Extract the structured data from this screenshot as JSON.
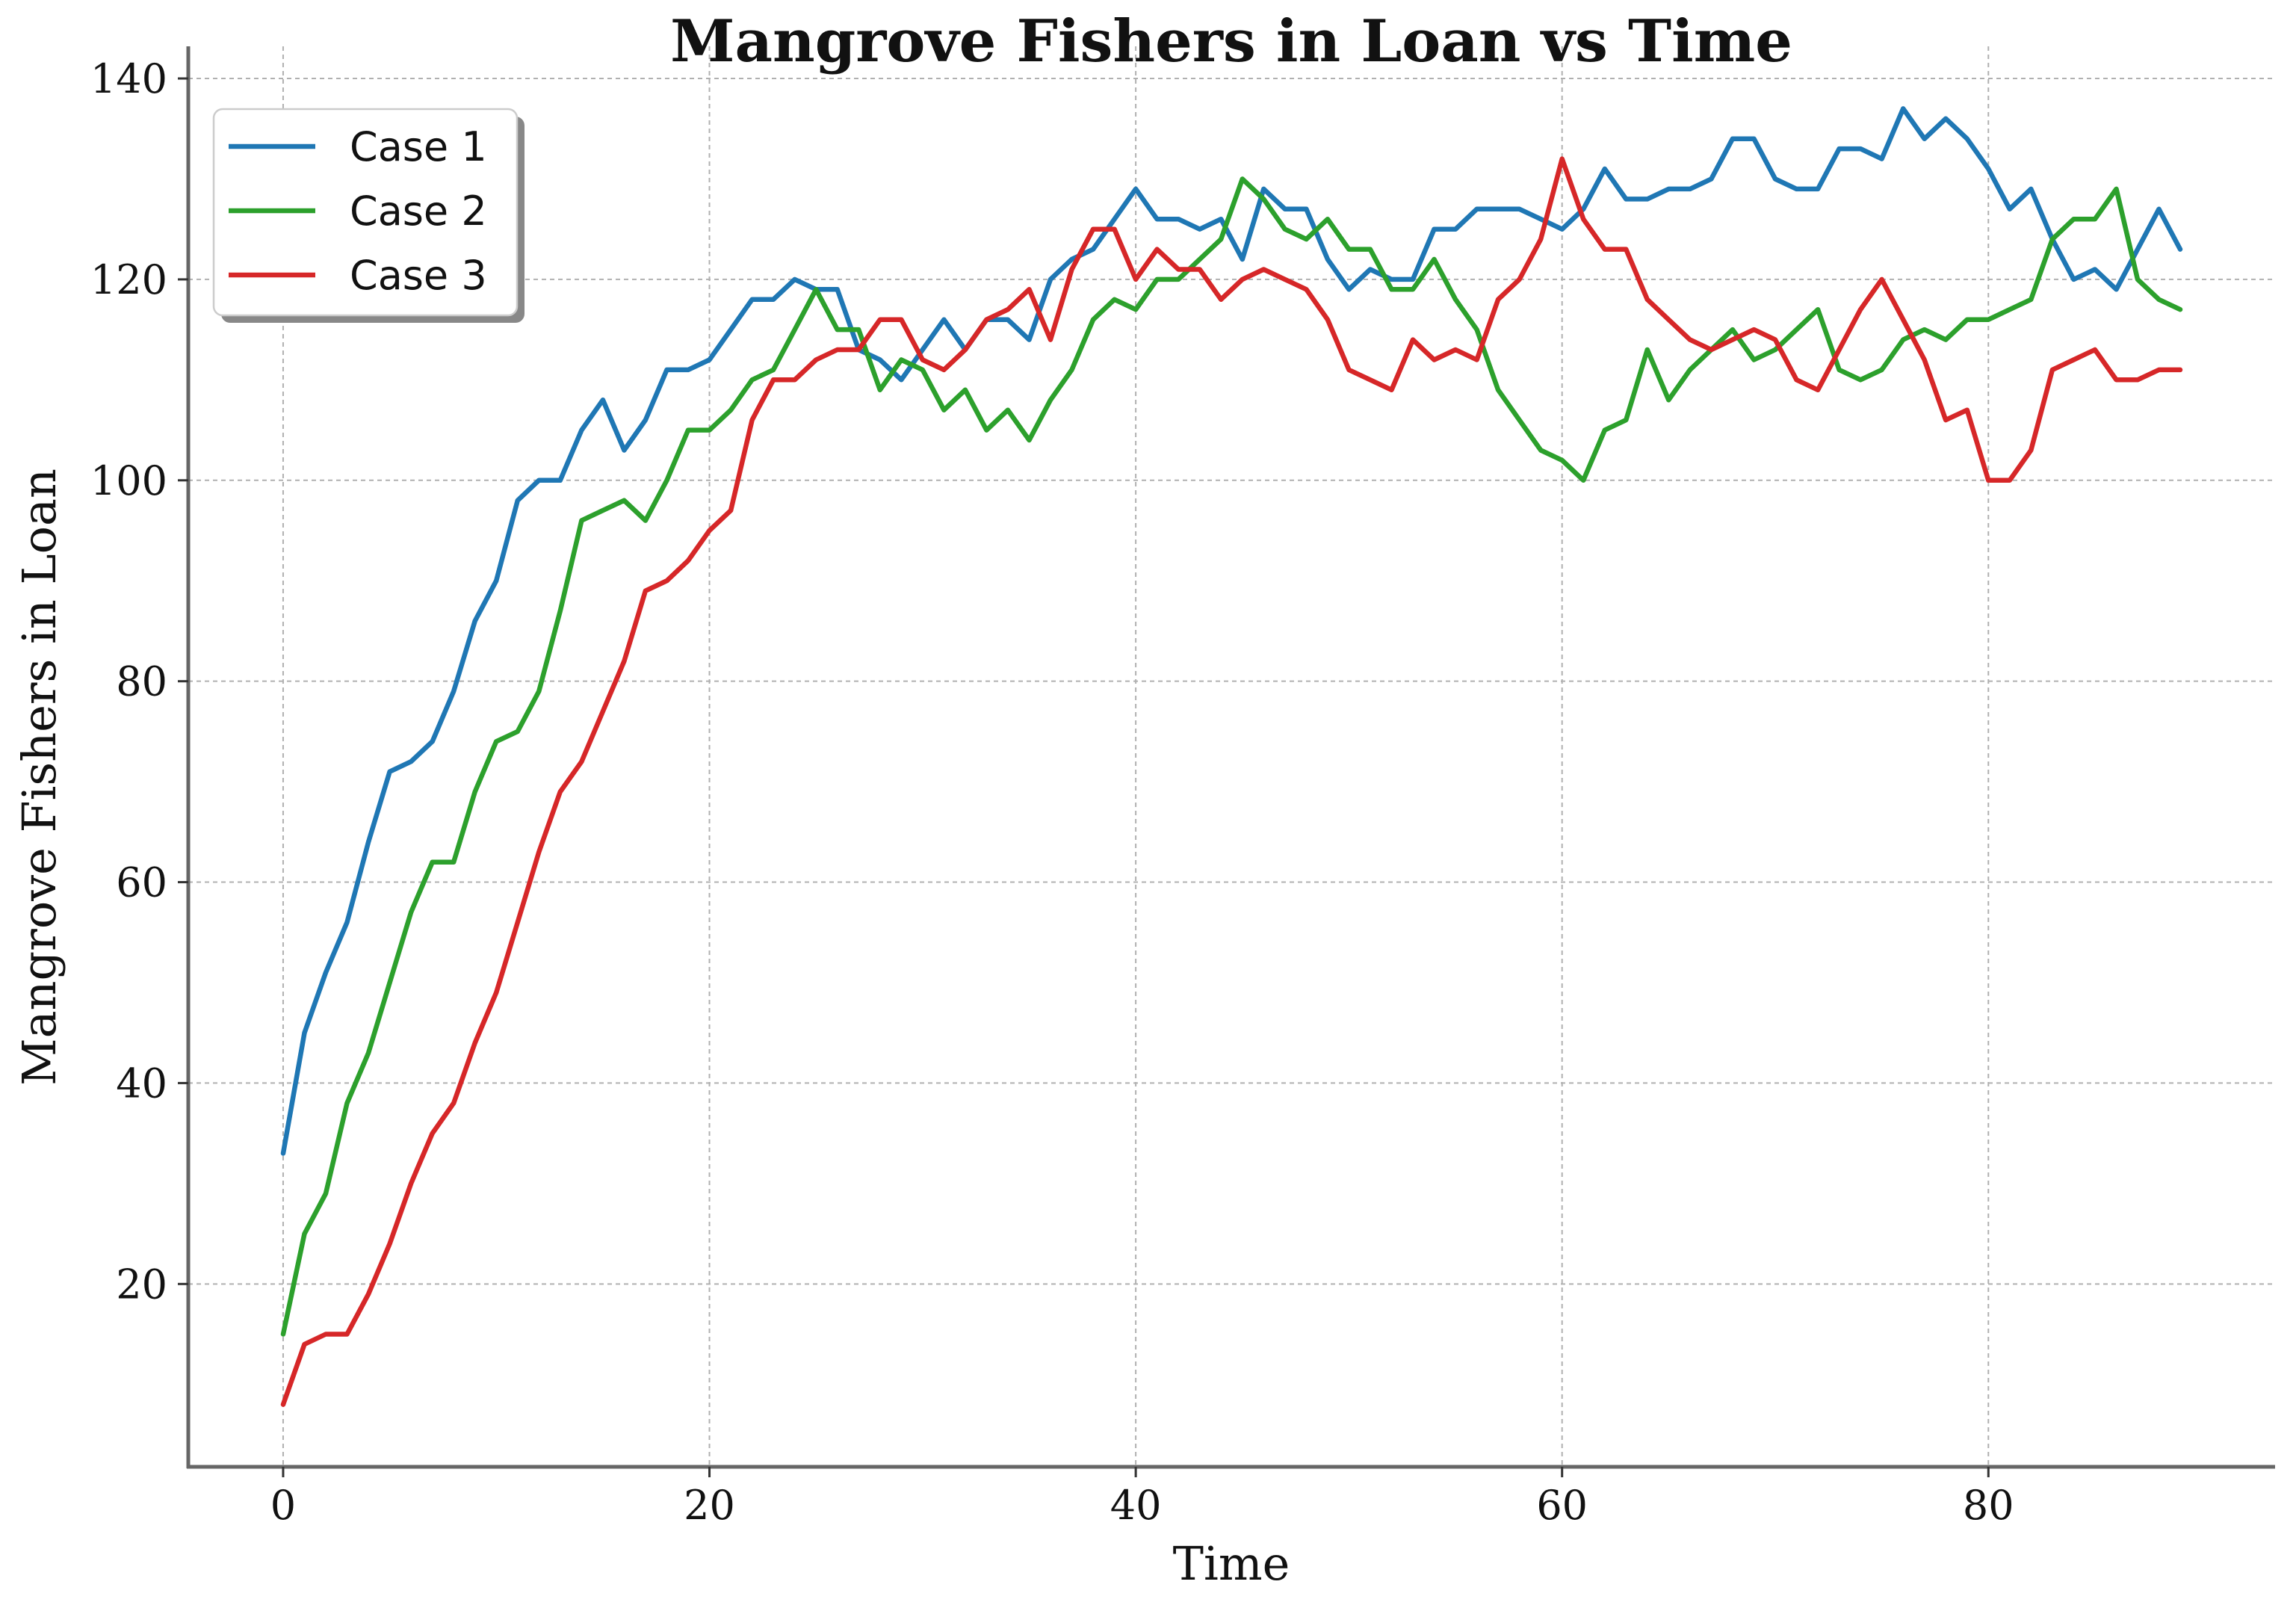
{
  "chart_data": {
    "type": "line",
    "title": "Mangrove Fishers in Loan vs Time",
    "xlabel": "Time",
    "ylabel": "Mangrove Fishers in Loan",
    "xlim": [
      -4.45,
      93.45
    ],
    "ylim": [
      1.8,
      143.2
    ],
    "xticks": [
      0,
      20,
      40,
      60,
      80
    ],
    "yticks": [
      20,
      40,
      60,
      80,
      100,
      120,
      140
    ],
    "grid": true,
    "grid_style": "dashed",
    "legend_position": "upper-left",
    "x": [
      0,
      1,
      2,
      3,
      4,
      5,
      6,
      7,
      8,
      9,
      10,
      11,
      12,
      13,
      14,
      15,
      16,
      17,
      18,
      19,
      20,
      21,
      22,
      23,
      24,
      25,
      26,
      27,
      28,
      29,
      30,
      31,
      32,
      33,
      34,
      35,
      36,
      37,
      38,
      39,
      40,
      41,
      42,
      43,
      44,
      45,
      46,
      47,
      48,
      49,
      50,
      51,
      52,
      53,
      54,
      55,
      56,
      57,
      58,
      59,
      60,
      61,
      62,
      63,
      64,
      65,
      66,
      67,
      68,
      69,
      70,
      71,
      72,
      73,
      74,
      75,
      76,
      77,
      78,
      79,
      80,
      81,
      82,
      83,
      84,
      85,
      86,
      87,
      88,
      89
    ],
    "series": [
      {
        "name": "Case 1",
        "color": "#1f77b4",
        "values": [
          33,
          45,
          51,
          56,
          64,
          71,
          72,
          74,
          79,
          86,
          90,
          98,
          100,
          100,
          105,
          108,
          103,
          106,
          111,
          111,
          112,
          115,
          118,
          118,
          120,
          119,
          119,
          113,
          112,
          110,
          113,
          116,
          113,
          116,
          116,
          114,
          120,
          122,
          123,
          126,
          129,
          126,
          126,
          125,
          126,
          122,
          129,
          127,
          127,
          122,
          119,
          121,
          120,
          120,
          125,
          125,
          127,
          127,
          127,
          126,
          125,
          127,
          131,
          128,
          128,
          129,
          129,
          130,
          134,
          134,
          130,
          129,
          129,
          133,
          133,
          132,
          137,
          134,
          136,
          134,
          131,
          127,
          129,
          124,
          120,
          121,
          119,
          123,
          127,
          123
        ]
      },
      {
        "name": "Case 2",
        "color": "#2ca02c",
        "values": [
          15,
          25,
          29,
          38,
          43,
          50,
          57,
          62,
          62,
          69,
          74,
          75,
          79,
          87,
          96,
          97,
          98,
          96,
          100,
          105,
          105,
          107,
          110,
          111,
          115,
          119,
          115,
          115,
          109,
          112,
          111,
          107,
          109,
          105,
          107,
          104,
          108,
          111,
          116,
          118,
          117,
          120,
          120,
          122,
          124,
          130,
          128,
          125,
          124,
          126,
          123,
          123,
          119,
          119,
          122,
          118,
          115,
          109,
          106,
          103,
          102,
          100,
          105,
          106,
          113,
          108,
          111,
          113,
          115,
          112,
          113,
          115,
          117,
          111,
          110,
          111,
          114,
          115,
          114,
          116,
          116,
          117,
          118,
          124,
          126,
          126,
          129,
          120,
          118,
          117
        ]
      },
      {
        "name": "Case 3",
        "color": "#d62728",
        "values": [
          8,
          14,
          15,
          15,
          19,
          24,
          30,
          35,
          38,
          44,
          49,
          56,
          63,
          69,
          72,
          77,
          82,
          89,
          90,
          92,
          95,
          97,
          106,
          110,
          110,
          112,
          113,
          113,
          116,
          116,
          112,
          111,
          113,
          116,
          117,
          119,
          114,
          121,
          125,
          125,
          120,
          123,
          121,
          121,
          118,
          120,
          121,
          120,
          119,
          116,
          111,
          110,
          109,
          114,
          112,
          113,
          112,
          118,
          120,
          124,
          132,
          126,
          123,
          123,
          118,
          116,
          114,
          113,
          114,
          115,
          114,
          110,
          109,
          113,
          117,
          120,
          116,
          112,
          106,
          107,
          100,
          100,
          103,
          111,
          112,
          113,
          110,
          110,
          111,
          111
        ]
      }
    ]
  }
}
